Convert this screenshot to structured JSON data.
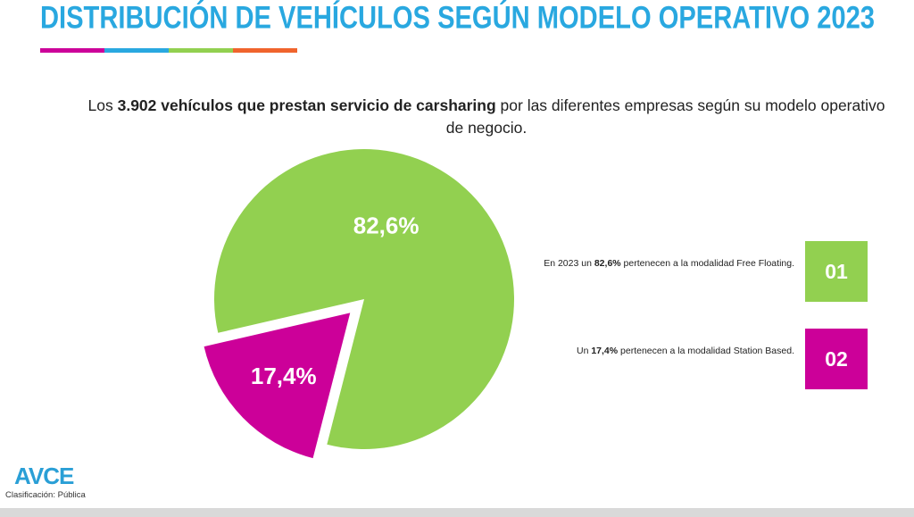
{
  "chart_data": {
    "type": "pie",
    "title": "DISTRIBUCIÓN DE VEHÍCULOS SEGÚN MODELO OPERATIVO 2023",
    "subtitle": [
      "Los ",
      "3.902 vehículos que prestan servicio de carsharing",
      " por las diferentes empresas según su modelo operativo de negocio."
    ],
    "values": [
      82.6,
      17.4
    ],
    "value_labels": [
      "82,6%",
      "17,4%"
    ],
    "colors": [
      "#92d050",
      "#cc0099"
    ]
  },
  "notes": [
    {
      "number": "01",
      "text": [
        "En 2023 un ",
        "82,6%",
        " pertenecen a la modalidad Free Floating."
      ]
    },
    {
      "number": "02",
      "text": [
        "Un ",
        "17,4%",
        " pertenecen a la modalidad Station Based."
      ]
    }
  ],
  "footer": {
    "logo": "AVCE",
    "classification": "Clasificación: Pública"
  }
}
